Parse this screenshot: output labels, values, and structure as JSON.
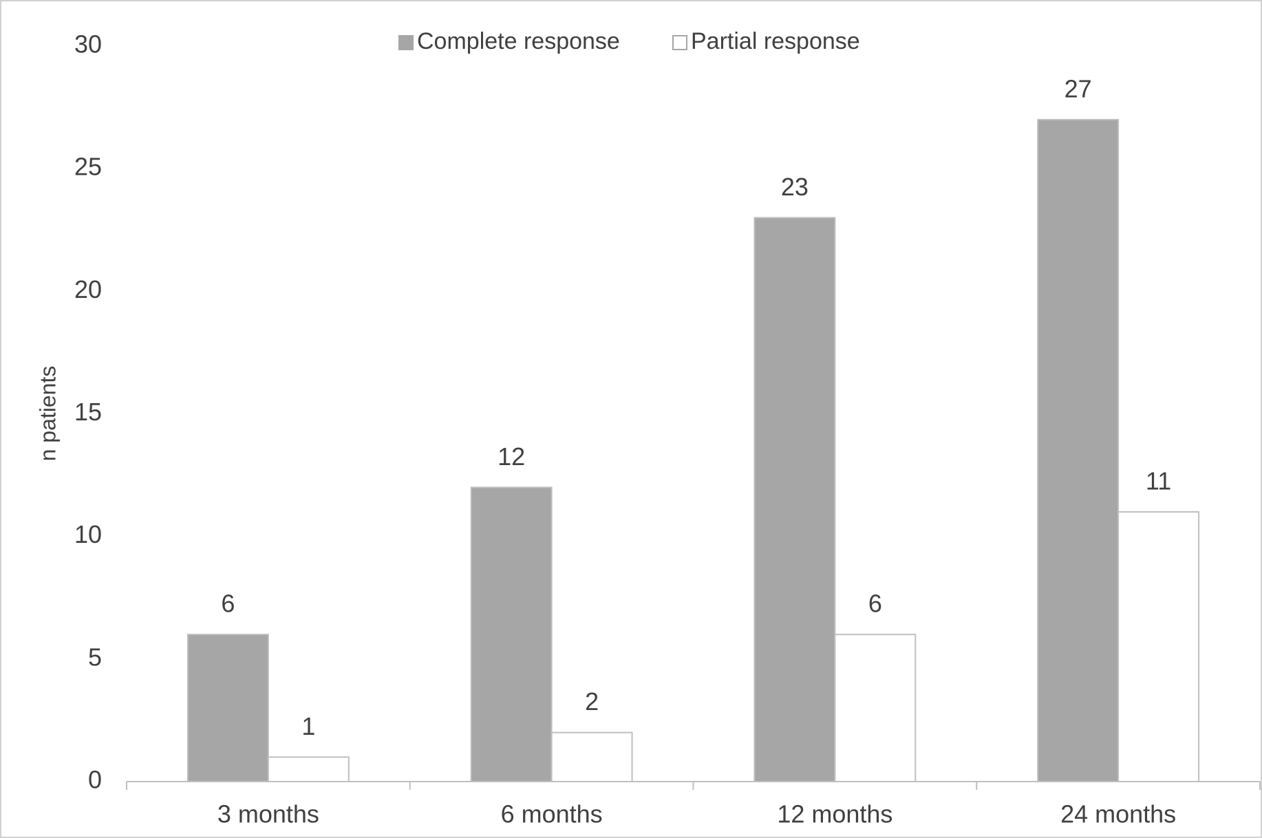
{
  "chart_data": {
    "type": "bar",
    "y_label": "n patients",
    "categories": [
      "3 months",
      "6 months",
      "12 months",
      "24 months"
    ],
    "series": [
      {
        "name": "Complete response",
        "color": "#a6a6a6",
        "values": [
          6,
          12,
          23,
          27
        ]
      },
      {
        "name": "Partial response",
        "color": "#ffffff",
        "values": [
          1,
          2,
          6,
          11
        ]
      }
    ],
    "ylim": [
      0,
      30
    ],
    "yticks": [
      0,
      5,
      10,
      15,
      20,
      25,
      30
    ],
    "grid": false,
    "legend": "top"
  }
}
